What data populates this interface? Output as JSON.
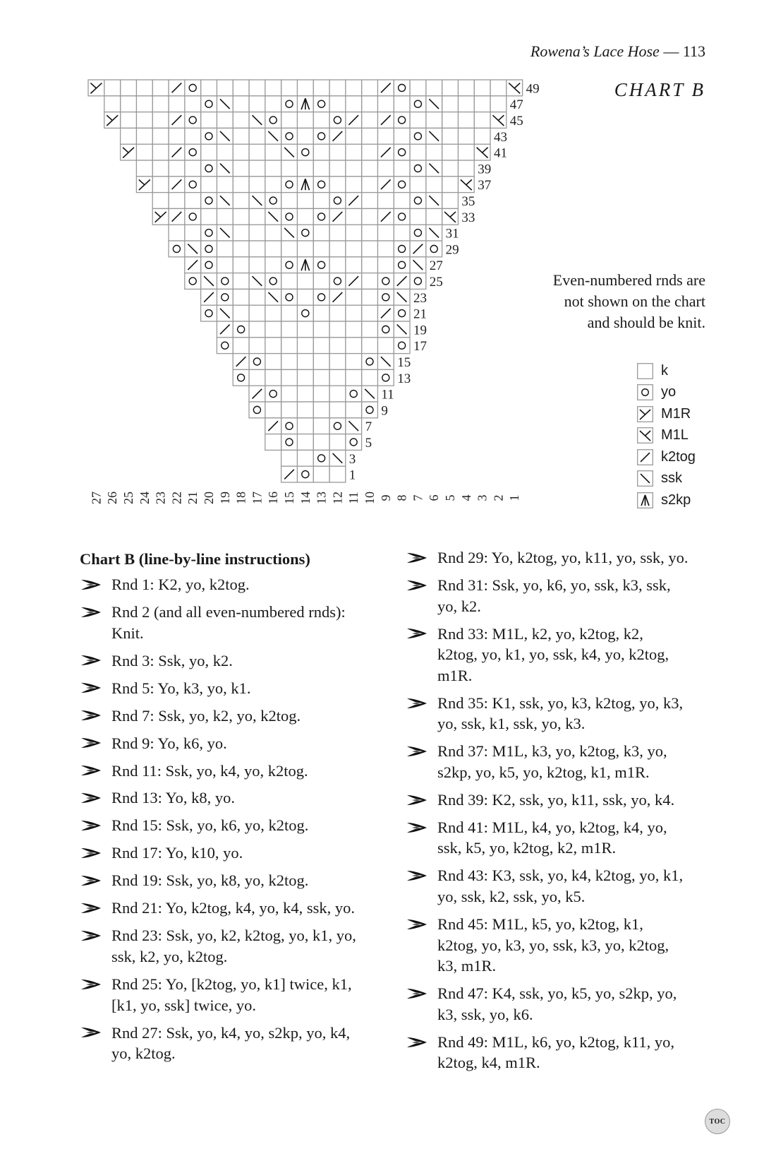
{
  "running_head": {
    "title": "Rowena’s Lace Hose",
    "separator": " — ",
    "page_number": "113"
  },
  "chart": {
    "title": "CHART B",
    "column_numbers": [
      27,
      26,
      25,
      24,
      23,
      22,
      21,
      20,
      19,
      18,
      17,
      16,
      15,
      14,
      13,
      12,
      11,
      10,
      9,
      8,
      7,
      6,
      5,
      4,
      3,
      2,
      1
    ],
    "symbol_codes": {
      ".": "k",
      "o": "yo",
      "R": "M1R",
      "L": "M1L",
      "/": "k2tog",
      "S": "ssk",
      "A": "s2kp"
    },
    "rows": [
      {
        "rnd": 49,
        "right_col": 1,
        "stitches": "L......o/...........o/....R"
      },
      {
        "rnd": 47,
        "right_col": 2,
        "stitches": "....So.....oAo...So......"
      },
      {
        "rnd": 45,
        "right_col": 2,
        "stitches": "L.....o/./o...oS...o/...R"
      },
      {
        "rnd": 43,
        "right_col": 3,
        "stitches": "...So..../o.oS..So....."
      },
      {
        "rnd": 41,
        "right_col": 3,
        "stitches": "L....o/....oS.....o/..R"
      },
      {
        "rnd": 39,
        "right_col": 4,
        "stitches": "..So...........So...."
      },
      {
        "rnd": 37,
        "right_col": 4,
        "stitches": "L...o/...oAo.....o/.R"
      },
      {
        "rnd": 35,
        "right_col": 5,
        "stitches": ".So.../o...oS.So..."
      },
      {
        "rnd": 33,
        "right_col": 5,
        "stitches": "L..o/../o.oS....o/R"
      },
      {
        "rnd": 31,
        "right_col": 6,
        "stitches": "So......oS...So.."
      },
      {
        "rnd": 29,
        "right_col": 6,
        "stitches": "o/o...........oSo"
      },
      {
        "rnd": 27,
        "right_col": 7,
        "stitches": "So....oAo....o/"
      },
      {
        "rnd": 25,
        "right_col": 7,
        "stitches": "o/o./o...oS.oSo"
      },
      {
        "rnd": 23,
        "right_col": 8,
        "stitches": "So../o.oS..o/"
      },
      {
        "rnd": 21,
        "right_col": 8,
        "stitches": "o/....o....So"
      },
      {
        "rnd": 19,
        "right_col": 8,
        "stitches": "So........o/"
      },
      {
        "rnd": 17,
        "right_col": 8,
        "stitches": "o..........o"
      },
      {
        "rnd": 15,
        "right_col": 9,
        "stitches": "So......o/"
      },
      {
        "rnd": 13,
        "right_col": 9,
        "stitches": "o........o"
      },
      {
        "rnd": 11,
        "right_col": 10,
        "stitches": "So....o/"
      },
      {
        "rnd": 9,
        "right_col": 10,
        "stitches": "o......o"
      },
      {
        "rnd": 7,
        "right_col": 11,
        "stitches": "So..o/"
      },
      {
        "rnd": 5,
        "right_col": 11,
        "stitches": "o...o."
      },
      {
        "rnd": 3,
        "right_col": 12,
        "stitches": "So.."
      },
      {
        "rnd": 1,
        "right_col": 12,
        "stitches": "..o/"
      }
    ],
    "grid_color": "#999999",
    "note": [
      "Even-numbered rnds are",
      "not shown on the chart",
      "and should be knit."
    ],
    "legend": [
      {
        "code": ".",
        "label": "k"
      },
      {
        "code": "o",
        "label": "yo"
      },
      {
        "code": "R",
        "label": "M1R"
      },
      {
        "code": "L",
        "label": "M1L"
      },
      {
        "code": "/",
        "label": "k2tog"
      },
      {
        "code": "S",
        "label": "ssk"
      },
      {
        "code": "A",
        "label": "s2kp"
      }
    ]
  },
  "instructions": {
    "heading": "Chart B (line-by-line instructions)",
    "bullet_icon": "leaf-arrow-ornament",
    "left": [
      [
        "Rnd 1: K2, yo, k2tog."
      ],
      [
        "Rnd 2 (and all even-numbered rnds):",
        "Knit."
      ],
      [
        "Rnd 3: Ssk, yo, k2."
      ],
      [
        "Rnd 5: Yo, k3, yo, k1."
      ],
      [
        "Rnd 7: Ssk, yo, k2, yo, k2tog."
      ],
      [
        "Rnd 9: Yo, k6, yo."
      ],
      [
        "Rnd 11: Ssk, yo, k4, yo, k2tog."
      ],
      [
        "Rnd 13: Yo, k8, yo."
      ],
      [
        "Rnd 15: Ssk, yo, k6, yo, k2tog."
      ],
      [
        "Rnd 17: Yo, k10, yo."
      ],
      [
        "Rnd 19: Ssk, yo, k8, yo, k2tog."
      ],
      [
        "Rnd 21: Yo, k2tog, k4, yo, k4, ssk, yo."
      ],
      [
        "Rnd 23: Ssk, yo, k2, k2tog, yo, k1, yo,",
        "ssk, k2, yo, k2tog."
      ],
      [
        "Rnd 25: Yo, [k2tog, yo, k1] twice, k1,",
        "[k1, yo, ssk] twice, yo."
      ],
      [
        "Rnd 27: Ssk, yo, k4, yo, s2kp, yo, k4,",
        "yo, k2tog."
      ]
    ],
    "right": [
      [
        "Rnd 29: Yo, k2tog, yo, k11, yo, ssk, yo."
      ],
      [
        "Rnd 31: Ssk, yo, k6, yo, ssk, k3, ssk,",
        "yo, k2."
      ],
      [
        "Rnd 33: M1L, k2, yo, k2tog, k2,",
        "k2tog, yo, k1, yo, ssk, k4, yo, k2tog,",
        "m1R."
      ],
      [
        "Rnd 35: K1, ssk, yo, k3, k2tog, yo, k3,",
        "yo, ssk, k1, ssk, yo, k3."
      ],
      [
        "Rnd 37: M1L, k3, yo, k2tog, k3, yo,",
        "s2kp, yo, k5, yo, k2tog, k1, m1R."
      ],
      [
        "Rnd 39: K2, ssk, yo, k11, ssk, yo, k4."
      ],
      [
        "Rnd 41: M1L, k4, yo, k2tog, k4, yo,",
        "ssk, k5, yo, k2tog, k2, m1R."
      ],
      [
        "Rnd 43: K3, ssk, yo, k4, k2tog, yo, k1,",
        "yo, ssk, k2, ssk, yo, k5."
      ],
      [
        "Rnd 45: M1L, k5, yo, k2tog, k1,",
        "k2tog, yo, k3, yo, ssk, k3, yo, k2tog,",
        "k3, m1R."
      ],
      [
        "Rnd 47: K4, ssk, yo, k5, yo, s2kp, yo,",
        "k3, ssk, yo, k6."
      ],
      [
        "Rnd 49: M1L, k6, yo, k2tog, k11, yo,",
        "k2tog, k4, m1R."
      ]
    ]
  },
  "toc_button": "TOC"
}
